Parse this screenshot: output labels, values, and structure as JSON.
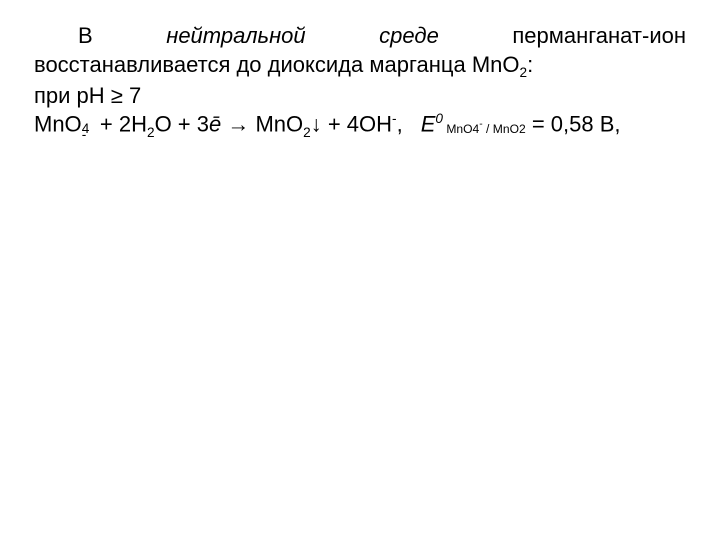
{
  "text": {
    "intro_prefix": "В ",
    "intro_italic": "нейтральной среде",
    "intro_rest": " перманганат-ион восстанавливается до диоксида марганца ",
    "mno2": "MnO",
    "sub2": "2",
    "colon": ":",
    "ph_line": "при рН ≥ 7",
    "eq_mno4": "MnO",
    "eq_sub4": "4",
    "eq_supminus": "-",
    "eq_plus1": " + 2H",
    "eq_h2o_sub": "2",
    "eq_o": "O + 3",
    "eq_ebar": "ē",
    "eq_arrow": " →  MnO",
    "eq_sub2b": "2",
    "eq_downarrow": "↓ + 4OH",
    "eq_oh_sup": "-",
    "eq_comma": ",",
    "E": "E",
    "sup0": "0",
    "e0_sub_text": " MnO4  / MnO2",
    "e0_sub_super": "-",
    "eq_val": " = 0,58 В,"
  }
}
